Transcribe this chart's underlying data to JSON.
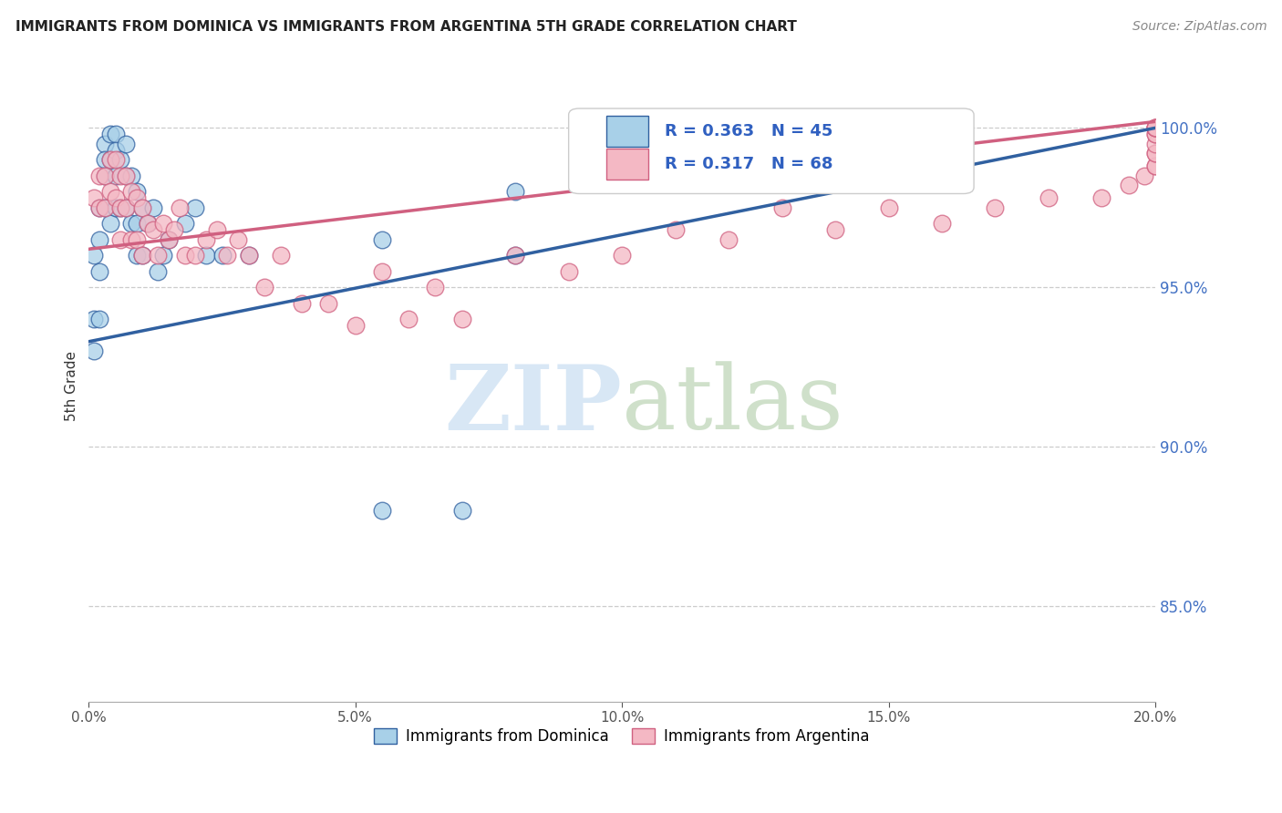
{
  "title": "IMMIGRANTS FROM DOMINICA VS IMMIGRANTS FROM ARGENTINA 5TH GRADE CORRELATION CHART",
  "source": "Source: ZipAtlas.com",
  "ylabel": "5th Grade",
  "ylabel_right_ticks": [
    "100.0%",
    "95.0%",
    "90.0%",
    "85.0%"
  ],
  "ylabel_right_vals": [
    1.0,
    0.95,
    0.9,
    0.85
  ],
  "xmin": 0.0,
  "xmax": 0.2,
  "ymin": 0.82,
  "ymax": 1.018,
  "legend_r1": "R = 0.363",
  "legend_n1": "N = 45",
  "legend_r2": "R = 0.317",
  "legend_n2": "N = 68",
  "color_blue": "#a8d0e8",
  "color_pink": "#f4b8c4",
  "line_color_blue": "#3060a0",
  "line_color_pink": "#d06080",
  "blue_x": [
    0.001,
    0.001,
    0.001,
    0.002,
    0.002,
    0.002,
    0.002,
    0.003,
    0.003,
    0.003,
    0.003,
    0.004,
    0.004,
    0.004,
    0.005,
    0.005,
    0.005,
    0.005,
    0.006,
    0.006,
    0.007,
    0.007,
    0.007,
    0.008,
    0.008,
    0.009,
    0.009,
    0.009,
    0.01,
    0.01,
    0.011,
    0.012,
    0.013,
    0.014,
    0.015,
    0.018,
    0.02,
    0.022,
    0.025,
    0.03,
    0.055,
    0.07,
    0.08,
    0.055,
    0.08
  ],
  "blue_y": [
    0.96,
    0.94,
    0.93,
    0.975,
    0.965,
    0.955,
    0.94,
    0.995,
    0.99,
    0.985,
    0.975,
    0.998,
    0.99,
    0.97,
    0.998,
    0.993,
    0.985,
    0.975,
    0.99,
    0.975,
    0.995,
    0.985,
    0.975,
    0.985,
    0.97,
    0.98,
    0.97,
    0.96,
    0.975,
    0.96,
    0.97,
    0.975,
    0.955,
    0.96,
    0.965,
    0.97,
    0.975,
    0.96,
    0.96,
    0.96,
    0.88,
    0.88,
    0.96,
    0.965,
    0.98
  ],
  "pink_x": [
    0.001,
    0.002,
    0.002,
    0.003,
    0.003,
    0.004,
    0.004,
    0.005,
    0.005,
    0.006,
    0.006,
    0.006,
    0.007,
    0.007,
    0.008,
    0.008,
    0.009,
    0.009,
    0.01,
    0.01,
    0.011,
    0.012,
    0.013,
    0.014,
    0.015,
    0.016,
    0.017,
    0.018,
    0.02,
    0.022,
    0.024,
    0.026,
    0.028,
    0.03,
    0.033,
    0.036,
    0.04,
    0.045,
    0.05,
    0.055,
    0.06,
    0.065,
    0.07,
    0.08,
    0.09,
    0.1,
    0.11,
    0.12,
    0.13,
    0.14,
    0.15,
    0.16,
    0.17,
    0.18,
    0.19,
    0.195,
    0.198,
    0.2,
    0.2,
    0.2,
    0.2,
    0.2,
    0.2,
    0.2,
    0.2,
    0.2,
    0.2,
    0.2
  ],
  "pink_y": [
    0.978,
    0.985,
    0.975,
    0.985,
    0.975,
    0.99,
    0.98,
    0.99,
    0.978,
    0.985,
    0.975,
    0.965,
    0.985,
    0.975,
    0.98,
    0.965,
    0.978,
    0.965,
    0.975,
    0.96,
    0.97,
    0.968,
    0.96,
    0.97,
    0.965,
    0.968,
    0.975,
    0.96,
    0.96,
    0.965,
    0.968,
    0.96,
    0.965,
    0.96,
    0.95,
    0.96,
    0.945,
    0.945,
    0.938,
    0.955,
    0.94,
    0.95,
    0.94,
    0.96,
    0.955,
    0.96,
    0.968,
    0.965,
    0.975,
    0.968,
    0.975,
    0.97,
    0.975,
    0.978,
    0.978,
    0.982,
    0.985,
    0.988,
    0.988,
    0.992,
    0.992,
    0.995,
    0.998,
    0.998,
    1.0,
    1.0,
    1.0,
    1.0
  ],
  "xticks": [
    0.0,
    0.05,
    0.1,
    0.15,
    0.2
  ],
  "xtick_labels": [
    "0.0%",
    "5.0%",
    "10.0%",
    "15.0%",
    "20.0%"
  ],
  "blue_trend_x": [
    0.0,
    0.2
  ],
  "blue_trend_y": [
    0.933,
    1.0
  ],
  "pink_trend_x": [
    0.0,
    0.2
  ],
  "pink_trend_y": [
    0.962,
    1.002
  ]
}
